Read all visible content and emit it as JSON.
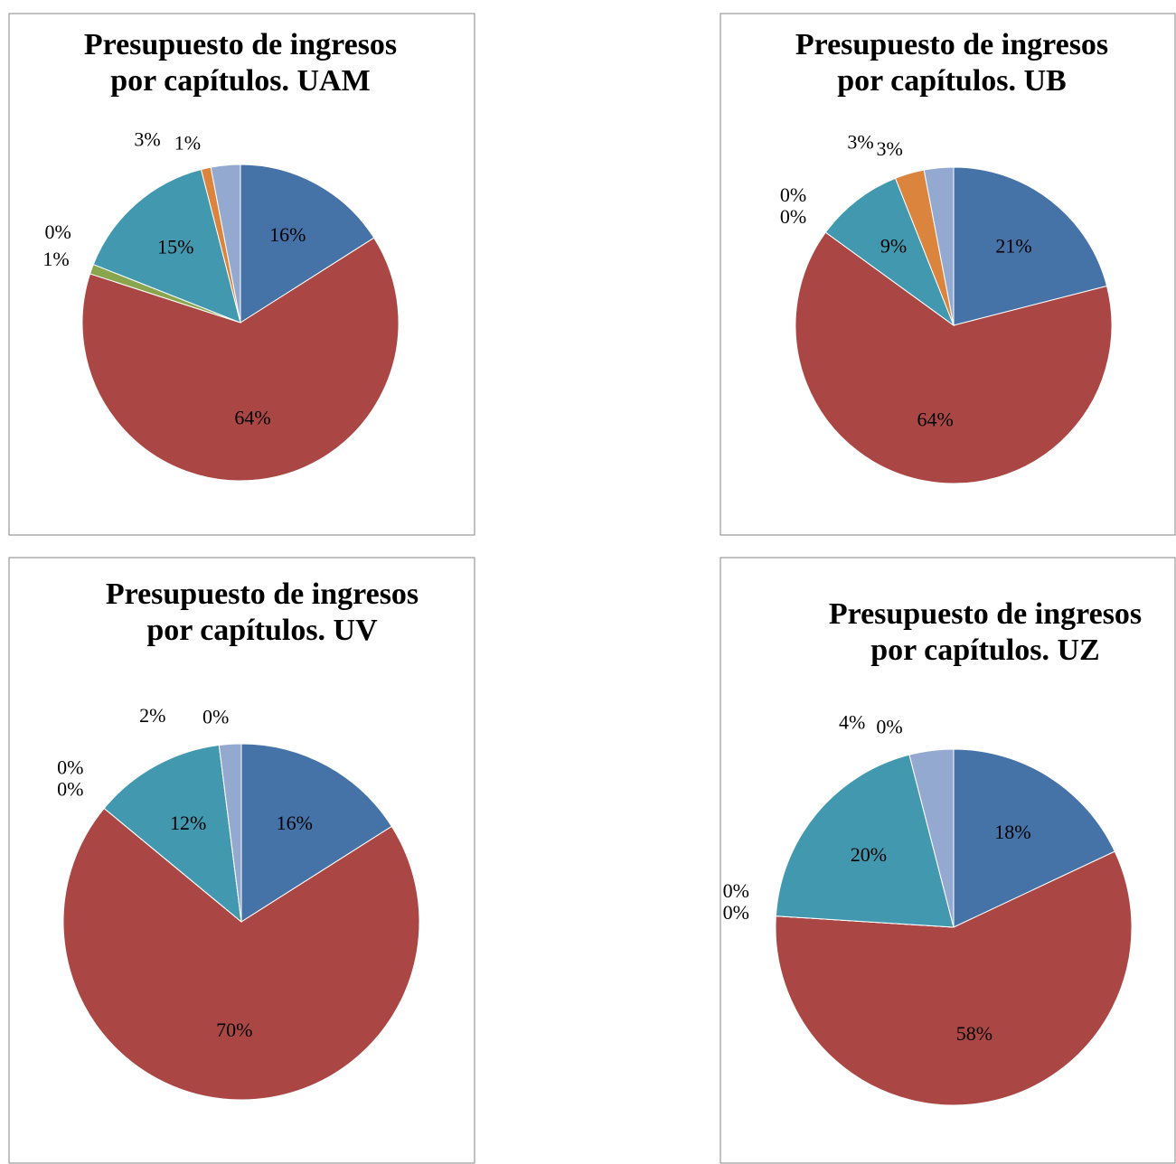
{
  "chart_data": [
    {
      "type": "pie",
      "title": [
        "Presupuesto de ingresos",
        "por capítulos. UAM"
      ],
      "values": [
        16,
        64,
        1,
        0,
        15,
        1,
        3
      ],
      "value_labels": [
        "16%",
        "64%",
        "1%",
        "0%",
        "15%",
        "1%",
        "3%"
      ],
      "colors": [
        "#4572a7",
        "#aa4643",
        "#89a54e",
        "#71588f",
        "#4198af",
        "#db843d",
        "#93a9cf"
      ]
    },
    {
      "type": "pie",
      "title": [
        "Presupuesto de ingresos",
        "por capítulos. UB"
      ],
      "values": [
        21,
        64,
        0,
        0,
        9,
        3,
        3
      ],
      "value_labels": [
        "21%",
        "64%",
        "0%",
        "0%",
        "9%",
        "3%",
        "3%"
      ],
      "colors": [
        "#4572a7",
        "#aa4643",
        "#89a54e",
        "#71588f",
        "#4198af",
        "#db843d",
        "#93a9cf"
      ]
    },
    {
      "type": "pie",
      "title": [
        "Presupuesto de ingresos",
        "por capítulos. UV"
      ],
      "values": [
        16,
        70,
        0,
        0,
        12,
        0,
        2
      ],
      "value_labels": [
        "16%",
        "70%",
        "0%",
        "0%",
        "12%",
        "0%",
        "2%"
      ],
      "colors": [
        "#4572a7",
        "#aa4643",
        "#89a54e",
        "#71588f",
        "#4198af",
        "#db843d",
        "#93a9cf"
      ]
    },
    {
      "type": "pie",
      "title": [
        "Presupuesto de ingresos",
        "por capítulos. UZ"
      ],
      "values": [
        18,
        58,
        0,
        0,
        20,
        0,
        4
      ],
      "value_labels": [
        "18%",
        "58%",
        "0%",
        "0%",
        "20%",
        "0%",
        "4%"
      ],
      "colors": [
        "#4572a7",
        "#aa4643",
        "#89a54e",
        "#71588f",
        "#4198af",
        "#db843d",
        "#93a9cf"
      ]
    }
  ]
}
